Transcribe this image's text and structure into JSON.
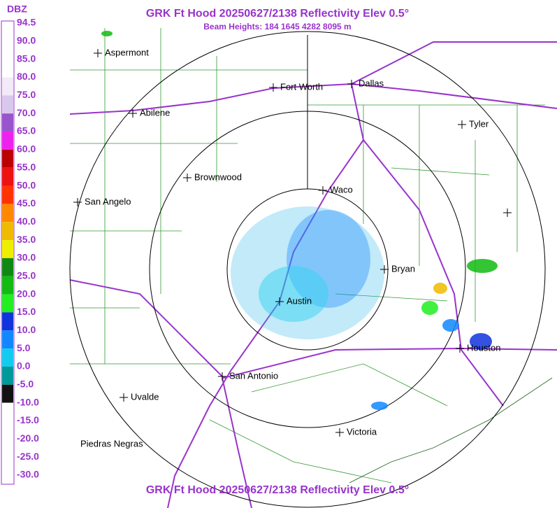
{
  "header": {
    "title": "GRK Ft Hood 20250627/2138 Reflectivity Elev 0.5°",
    "subtitle": "Beam Heights: 184 1645 4282 8095 m"
  },
  "legend": {
    "unit": "DBZ",
    "items": [
      {
        "label": "94.5",
        "color": "#ffffff"
      },
      {
        "label": "90.0",
        "color": "#ffffff"
      },
      {
        "label": "85.0",
        "color": "#ffffff"
      },
      {
        "label": "80.0",
        "color": "#f2eaf8"
      },
      {
        "label": "75.0",
        "color": "#d9c8ee"
      },
      {
        "label": "70.0",
        "color": "#9955cc"
      },
      {
        "label": "65.0",
        "color": "#ee22ee"
      },
      {
        "label": "60.0",
        "color": "#bb0000"
      },
      {
        "label": "55.0",
        "color": "#ee1111"
      },
      {
        "label": "50.0",
        "color": "#ff3300"
      },
      {
        "label": "45.0",
        "color": "#ff8800"
      },
      {
        "label": "40.0",
        "color": "#eebb00"
      },
      {
        "label": "35.0",
        "color": "#eeee00"
      },
      {
        "label": "30.0",
        "color": "#118811"
      },
      {
        "label": "25.0",
        "color": "#11bb11"
      },
      {
        "label": "20.0",
        "color": "#22ee22"
      },
      {
        "label": "15.0",
        "color": "#1133dd"
      },
      {
        "label": "10.0",
        "color": "#1188ff"
      },
      {
        "label": "5.0",
        "color": "#11ccee"
      },
      {
        "label": "0.0",
        "color": "#009999"
      },
      {
        "label": "-5.0",
        "color": "#111111"
      },
      {
        "label": "-10.0",
        "color": "#ffffff"
      },
      {
        "label": "-15.0",
        "color": "#ffffff"
      },
      {
        "label": "-20.0",
        "color": "#ffffff"
      },
      {
        "label": "-25.0",
        "color": "#ffffff"
      },
      {
        "label": "-30.0",
        "color": "#ffffff"
      }
    ]
  },
  "cities": [
    {
      "name": "Aspermont"
    },
    {
      "name": "Fort Worth"
    },
    {
      "name": "Dallas"
    },
    {
      "name": "Abilene"
    },
    {
      "name": "Tyler"
    },
    {
      "name": "Brownwood"
    },
    {
      "name": "Waco"
    },
    {
      "name": "San Angelo"
    },
    {
      "name": "Bryan"
    },
    {
      "name": "Austin"
    },
    {
      "name": "Houston"
    },
    {
      "name": "San Antonio"
    },
    {
      "name": "Uvalde"
    },
    {
      "name": "Victoria"
    },
    {
      "name": "Piedras Negras"
    }
  ],
  "footer": {
    "title": "GRK Ft Hood 20250627/2138 Reflectivity Elev 0.5°"
  }
}
